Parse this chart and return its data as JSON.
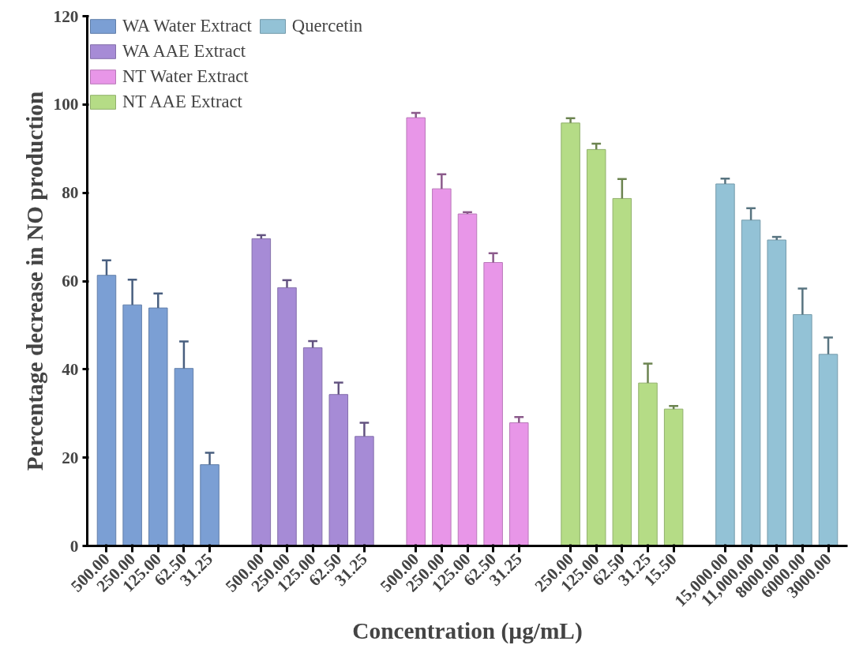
{
  "chart_data": {
    "type": "bar",
    "xlabel": "Concentration (µg/mL)",
    "ylabel": "Percentage decrease in NO production",
    "categories": [
      "500.00",
      "250.00",
      "125.00",
      "62.50",
      "31.25",
      null,
      "500.00",
      "250.00",
      "125.00",
      "62.50",
      "31.25",
      null,
      "500.00",
      "250.00",
      "125.00",
      "62.50",
      "31.25",
      null,
      "250.00",
      "125.00",
      "62.50",
      "31.25",
      "15.50",
      null,
      "15,000.00",
      "11,000.00",
      "8000.00",
      "6000.00",
      "3000.00"
    ],
    "series": [
      {
        "name": "WA Water Extract",
        "color": "#7b9fd4",
        "values": [
          61.3,
          54.6,
          53.9,
          40.2,
          18.4,
          null,
          null,
          null,
          null,
          null,
          null,
          null,
          null,
          null,
          null,
          null,
          null,
          null,
          null,
          null,
          null,
          null,
          null,
          null,
          null,
          null,
          null,
          null,
          null
        ],
        "errors": [
          [
            61.3,
            64.7
          ],
          [
            54.6,
            60.3
          ],
          [
            53.9,
            57.2
          ],
          [
            40.2,
            46.3
          ],
          [
            18.4,
            21.1
          ],
          null,
          null,
          null,
          null,
          null,
          null,
          null,
          null,
          null,
          null,
          null,
          null,
          null,
          null,
          null,
          null,
          null,
          null,
          null,
          null,
          null,
          null,
          null,
          null
        ]
      },
      {
        "name": "WA AAE Extract",
        "color": "#a68bd6",
        "values": [
          null,
          null,
          null,
          null,
          null,
          null,
          69.6,
          58.5,
          44.9,
          34.3,
          24.8,
          null,
          null,
          null,
          null,
          null,
          null,
          null,
          null,
          null,
          null,
          null,
          null,
          null,
          null,
          null,
          null,
          null,
          null
        ],
        "errors": [
          null,
          null,
          null,
          null,
          null,
          null,
          [
            69.6,
            70.4
          ],
          [
            58.5,
            60.2
          ],
          [
            44.9,
            46.4
          ],
          [
            34.3,
            37.0
          ],
          [
            24.8,
            27.9
          ],
          null,
          null,
          null,
          null,
          null,
          null,
          null,
          null,
          null,
          null,
          null,
          null,
          null,
          null,
          null,
          null,
          null,
          null
        ]
      },
      {
        "name": "NT Water Extract",
        "color": "#e896e8",
        "values": [
          null,
          null,
          null,
          null,
          null,
          null,
          null,
          null,
          null,
          null,
          null,
          null,
          97.0,
          80.9,
          75.2,
          64.2,
          27.9,
          null,
          null,
          null,
          null,
          null,
          null,
          null,
          null,
          null,
          null,
          null,
          null
        ],
        "errors": [
          null,
          null,
          null,
          null,
          null,
          null,
          null,
          null,
          null,
          null,
          null,
          null,
          [
            97.0,
            98.1
          ],
          [
            80.9,
            84.2
          ],
          [
            75.2,
            75.6
          ],
          [
            64.2,
            66.3
          ],
          [
            27.9,
            29.2
          ],
          null,
          null,
          null,
          null,
          null,
          null,
          null,
          null,
          null,
          null,
          null,
          null
        ]
      },
      {
        "name": "NT AAE Extract",
        "color": "#b5dc86",
        "values": [
          null,
          null,
          null,
          null,
          null,
          null,
          null,
          null,
          null,
          null,
          null,
          null,
          null,
          null,
          null,
          null,
          null,
          null,
          95.8,
          89.8,
          78.7,
          36.9,
          31.0,
          null,
          null,
          null,
          null,
          null,
          null
        ],
        "errors": [
          null,
          null,
          null,
          null,
          null,
          null,
          null,
          null,
          null,
          null,
          null,
          null,
          null,
          null,
          null,
          null,
          null,
          null,
          [
            95.8,
            96.9
          ],
          [
            89.8,
            91.1
          ],
          [
            78.7,
            83.1
          ],
          [
            36.9,
            41.3
          ],
          [
            31.0,
            31.7
          ],
          null,
          null,
          null,
          null,
          null,
          null
        ]
      },
      {
        "name": "Quercetin",
        "color": "#93c2d6",
        "values": [
          null,
          null,
          null,
          null,
          null,
          null,
          null,
          null,
          null,
          null,
          null,
          null,
          null,
          null,
          null,
          null,
          null,
          null,
          null,
          null,
          null,
          null,
          null,
          null,
          82.0,
          73.8,
          69.3,
          52.4,
          43.4
        ],
        "errors": [
          null,
          null,
          null,
          null,
          null,
          null,
          null,
          null,
          null,
          null,
          null,
          null,
          null,
          null,
          null,
          null,
          null,
          null,
          null,
          null,
          null,
          null,
          null,
          null,
          [
            82.0,
            83.2
          ],
          [
            73.8,
            76.5
          ],
          [
            69.3,
            70.0
          ],
          [
            52.4,
            58.3
          ],
          [
            43.4,
            47.2
          ]
        ]
      }
    ],
    "ylim": [
      0,
      120
    ],
    "yticks": [
      0,
      20,
      40,
      60,
      80,
      100,
      120
    ],
    "grid": false,
    "legend": "top left"
  }
}
